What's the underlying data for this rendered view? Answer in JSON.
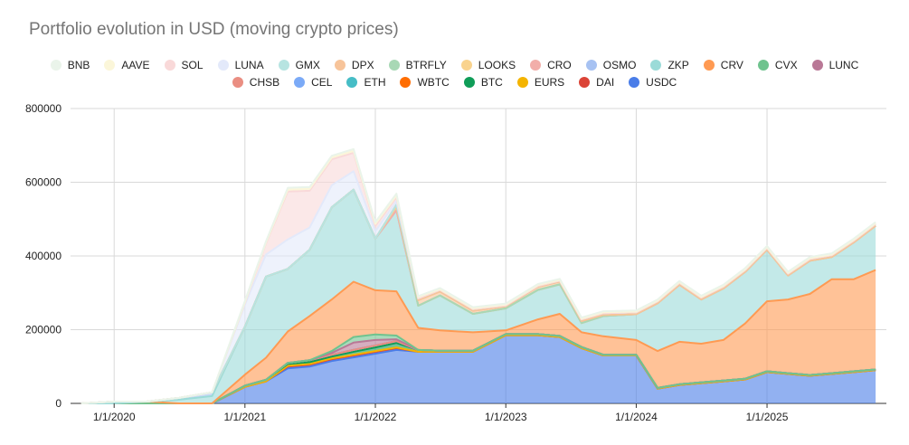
{
  "chart_data": {
    "type": "area",
    "stacked": true,
    "title": "Portfolio evolution in USD (moving crypto prices)",
    "xlabel": "",
    "ylabel": "",
    "ylim": [
      0,
      800000
    ],
    "yticks": [
      0,
      200000,
      400000,
      600000,
      800000
    ],
    "ytick_labels": [
      "0",
      "200000",
      "400000",
      "600000",
      "800000"
    ],
    "xlim": [
      "2019-09-01",
      "2025-12-01"
    ],
    "xticks": [
      "2020-01-01",
      "2021-01-01",
      "2022-01-01",
      "2023-01-01",
      "2024-01-01",
      "2025-01-01"
    ],
    "xtick_labels": [
      "1/1/2020",
      "1/1/2021",
      "1/1/2022",
      "1/1/2023",
      "1/1/2024",
      "1/1/2025"
    ],
    "grid": true,
    "legend_position": "top",
    "x": [
      "2019-10-01",
      "2020-01-01",
      "2020-04-01",
      "2020-07-01",
      "2020-10-01",
      "2021-01-01",
      "2021-03-01",
      "2021-05-01",
      "2021-07-01",
      "2021-09-01",
      "2021-11-01",
      "2022-01-01",
      "2022-03-01",
      "2022-05-01",
      "2022-07-01",
      "2022-10-01",
      "2023-01-01",
      "2023-04-01",
      "2023-06-01",
      "2023-08-01",
      "2023-10-01",
      "2024-01-01",
      "2024-03-01",
      "2024-05-01",
      "2024-07-01",
      "2024-09-01",
      "2024-11-01",
      "2025-01-01",
      "2025-03-01",
      "2025-05-01",
      "2025-07-01",
      "2025-09-01",
      "2025-11-01"
    ],
    "series": [
      {
        "name": "USDC",
        "color": "#4A7DE8",
        "values": [
          0,
          0,
          0,
          0,
          0,
          45000,
          60000,
          95000,
          100000,
          115000,
          125000,
          135000,
          145000,
          140000,
          140000,
          140000,
          185000,
          185000,
          180000,
          150000,
          130000,
          130000,
          40000,
          50000,
          55000,
          60000,
          65000,
          85000,
          80000,
          75000,
          80000,
          85000,
          90000
        ]
      },
      {
        "name": "DAI",
        "color": "#DB4437",
        "values": [
          0,
          0,
          0,
          0,
          0,
          0,
          0,
          5000,
          5000,
          5000,
          5000,
          5000,
          5000,
          0,
          0,
          0,
          0,
          0,
          0,
          0,
          0,
          0,
          0,
          0,
          0,
          0,
          0,
          0,
          0,
          0,
          0,
          0,
          0
        ]
      },
      {
        "name": "EURS",
        "color": "#F4B400",
        "values": [
          0,
          0,
          0,
          0,
          0,
          0,
          0,
          2000,
          2000,
          2000,
          2000,
          2000,
          2000,
          0,
          0,
          0,
          0,
          0,
          0,
          0,
          0,
          0,
          0,
          0,
          0,
          0,
          0,
          0,
          0,
          0,
          0,
          0,
          0
        ]
      },
      {
        "name": "BTC",
        "color": "#0F9D58",
        "values": [
          0,
          0,
          0,
          0,
          0,
          3000,
          4000,
          5000,
          5000,
          5000,
          8000,
          10000,
          12000,
          5000,
          3000,
          3000,
          3000,
          3000,
          3000,
          3000,
          2000,
          2000,
          2000,
          2000,
          2000,
          2000,
          2000,
          2000,
          2000,
          2000,
          2000,
          2000,
          2000
        ]
      },
      {
        "name": "WBTC",
        "color": "#FF6D01",
        "values": [
          0,
          0,
          0,
          0,
          0,
          0,
          0,
          3000,
          5000,
          5000,
          5000,
          5000,
          5000,
          0,
          0,
          0,
          0,
          0,
          0,
          0,
          0,
          0,
          0,
          0,
          0,
          0,
          0,
          0,
          0,
          0,
          0,
          0,
          0
        ]
      },
      {
        "name": "ETH",
        "color": "#46BDC6",
        "values": [
          0,
          0,
          0,
          0,
          0,
          0,
          0,
          0,
          0,
          0,
          0,
          0,
          0,
          0,
          0,
          0,
          0,
          0,
          0,
          0,
          0,
          0,
          0,
          0,
          0,
          0,
          0,
          0,
          0,
          0,
          0,
          0,
          0
        ]
      },
      {
        "name": "CEL",
        "color": "#7BAAF7",
        "values": [
          0,
          0,
          0,
          0,
          0,
          0,
          0,
          0,
          0,
          0,
          0,
          0,
          0,
          0,
          0,
          0,
          0,
          0,
          0,
          0,
          0,
          0,
          0,
          0,
          0,
          0,
          0,
          0,
          0,
          0,
          0,
          0,
          0
        ]
      },
      {
        "name": "CHSB",
        "color": "#EA8E82",
        "values": [
          0,
          0,
          0,
          0,
          0,
          0,
          0,
          0,
          0,
          0,
          0,
          0,
          0,
          0,
          0,
          0,
          0,
          0,
          0,
          0,
          0,
          0,
          0,
          0,
          0,
          0,
          0,
          0,
          0,
          0,
          0,
          0,
          0
        ]
      },
      {
        "name": "LUNC",
        "color": "#B97896",
        "values": [
          0,
          0,
          0,
          0,
          0,
          0,
          0,
          0,
          0,
          5000,
          20000,
          15000,
          5000,
          0,
          0,
          0,
          0,
          0,
          0,
          0,
          0,
          0,
          0,
          0,
          0,
          0,
          0,
          0,
          0,
          0,
          0,
          0,
          0
        ]
      },
      {
        "name": "CVX",
        "color": "#6FC38E",
        "values": [
          0,
          0,
          0,
          0,
          0,
          0,
          0,
          0,
          0,
          5000,
          15000,
          15000,
          10000,
          0,
          0,
          0,
          0,
          0,
          0,
          0,
          0,
          0,
          0,
          0,
          0,
          0,
          0,
          0,
          0,
          0,
          0,
          0,
          0
        ]
      },
      {
        "name": "CRV",
        "color": "#FF9A52",
        "values": [
          0,
          0,
          5000,
          0,
          0,
          30000,
          60000,
          85000,
          120000,
          140000,
          150000,
          120000,
          120000,
          60000,
          55000,
          50000,
          10000,
          40000,
          60000,
          40000,
          50000,
          40000,
          100000,
          115000,
          105000,
          110000,
          150000,
          190000,
          200000,
          220000,
          255000,
          250000,
          270000
        ]
      },
      {
        "name": "ZKP",
        "color": "#9BDBD8",
        "values": [
          0,
          0,
          0,
          10000,
          20000,
          130000,
          220000,
          170000,
          180000,
          250000,
          250000,
          140000,
          220000,
          60000,
          95000,
          50000,
          60000,
          80000,
          80000,
          25000,
          55000,
          70000,
          130000,
          155000,
          120000,
          140000,
          140000,
          140000,
          65000,
          90000,
          60000,
          100000,
          120000
        ]
      },
      {
        "name": "OSMO",
        "color": "#A7C2F2",
        "values": [
          0,
          5000,
          0,
          5000,
          10000,
          0,
          0,
          0,
          0,
          0,
          0,
          0,
          0,
          0,
          0,
          0,
          0,
          0,
          0,
          0,
          0,
          0,
          0,
          0,
          0,
          0,
          0,
          0,
          0,
          0,
          0,
          0,
          0
        ]
      },
      {
        "name": "CRO",
        "color": "#F2AEA9",
        "values": [
          0,
          0,
          0,
          0,
          0,
          0,
          0,
          0,
          0,
          0,
          0,
          0,
          0,
          0,
          0,
          0,
          0,
          0,
          0,
          0,
          0,
          0,
          0,
          0,
          0,
          0,
          0,
          0,
          0,
          0,
          0,
          0,
          0
        ]
      },
      {
        "name": "LOOKS",
        "color": "#F9D38E",
        "values": [
          0,
          0,
          0,
          0,
          0,
          0,
          0,
          0,
          0,
          0,
          0,
          0,
          10000,
          0,
          0,
          0,
          0,
          0,
          0,
          0,
          0,
          0,
          0,
          0,
          0,
          0,
          0,
          0,
          0,
          0,
          0,
          0,
          0
        ]
      },
      {
        "name": "BTRFLY",
        "color": "#A8D8B5",
        "values": [
          0,
          0,
          0,
          0,
          0,
          0,
          0,
          0,
          0,
          0,
          0,
          0,
          5000,
          0,
          0,
          0,
          0,
          0,
          0,
          0,
          0,
          0,
          0,
          0,
          0,
          0,
          0,
          0,
          0,
          0,
          0,
          0,
          0
        ]
      },
      {
        "name": "DPX",
        "color": "#F7C49A",
        "values": [
          0,
          0,
          0,
          0,
          0,
          0,
          0,
          0,
          0,
          0,
          0,
          0,
          0,
          15000,
          10000,
          8000,
          5000,
          8000,
          7000,
          5000,
          3000,
          0,
          0,
          0,
          0,
          0,
          0,
          0,
          0,
          0,
          0,
          0,
          0
        ]
      },
      {
        "name": "GMX",
        "color": "#B7E4E1",
        "values": [
          0,
          0,
          0,
          0,
          0,
          0,
          0,
          0,
          0,
          0,
          0,
          0,
          0,
          5000,
          5000,
          5000,
          3000,
          3000,
          3000,
          5000,
          5000,
          5000,
          5000,
          5000,
          5000,
          5000,
          5000,
          5000,
          5000,
          5000,
          5000,
          5000,
          5000
        ]
      },
      {
        "name": "LUNA",
        "color": "#E3E9FA",
        "values": [
          0,
          0,
          0,
          0,
          0,
          60000,
          60000,
          80000,
          60000,
          60000,
          50000,
          20000,
          10000,
          0,
          0,
          0,
          0,
          0,
          0,
          0,
          0,
          0,
          0,
          0,
          0,
          0,
          0,
          0,
          0,
          0,
          0,
          0,
          0
        ]
      },
      {
        "name": "SOL",
        "color": "#F9D9D9",
        "values": [
          0,
          0,
          0,
          0,
          0,
          5000,
          30000,
          130000,
          100000,
          70000,
          50000,
          15000,
          10000,
          0,
          0,
          0,
          0,
          0,
          0,
          0,
          0,
          0,
          0,
          0,
          0,
          0,
          0,
          0,
          0,
          0,
          0,
          0,
          0
        ]
      },
      {
        "name": "AAVE",
        "color": "#FBF6D9",
        "values": [
          0,
          0,
          0,
          0,
          0,
          2000,
          3000,
          5000,
          5000,
          5000,
          5000,
          5000,
          5000,
          3000,
          2000,
          2000,
          2000,
          2000,
          2000,
          2000,
          2000,
          2000,
          2000,
          2000,
          2000,
          2000,
          2000,
          2000,
          2000,
          2000,
          2000,
          2000,
          2000
        ]
      },
      {
        "name": "BNB",
        "color": "#EAF4EA",
        "values": [
          0,
          0,
          0,
          0,
          0,
          3000,
          3000,
          5000,
          5000,
          5000,
          5000,
          5000,
          5000,
          3000,
          3000,
          3000,
          3000,
          3000,
          3000,
          3000,
          3000,
          3000,
          3000,
          3000,
          3000,
          3000,
          3000,
          3000,
          3000,
          3000,
          3000,
          3000,
          3000
        ]
      }
    ],
    "legend_rows": [
      [
        "BNB",
        "AAVE",
        "SOL",
        "LUNA",
        "GMX",
        "DPX",
        "BTRFLY",
        "LOOKS",
        "CRO",
        "OSMO",
        "ZKP",
        "CRV",
        "CVX",
        "LUNC"
      ],
      [
        "CHSB",
        "CEL",
        "ETH",
        "WBTC",
        "BTC",
        "EURS",
        "DAI",
        "USDC"
      ]
    ]
  }
}
